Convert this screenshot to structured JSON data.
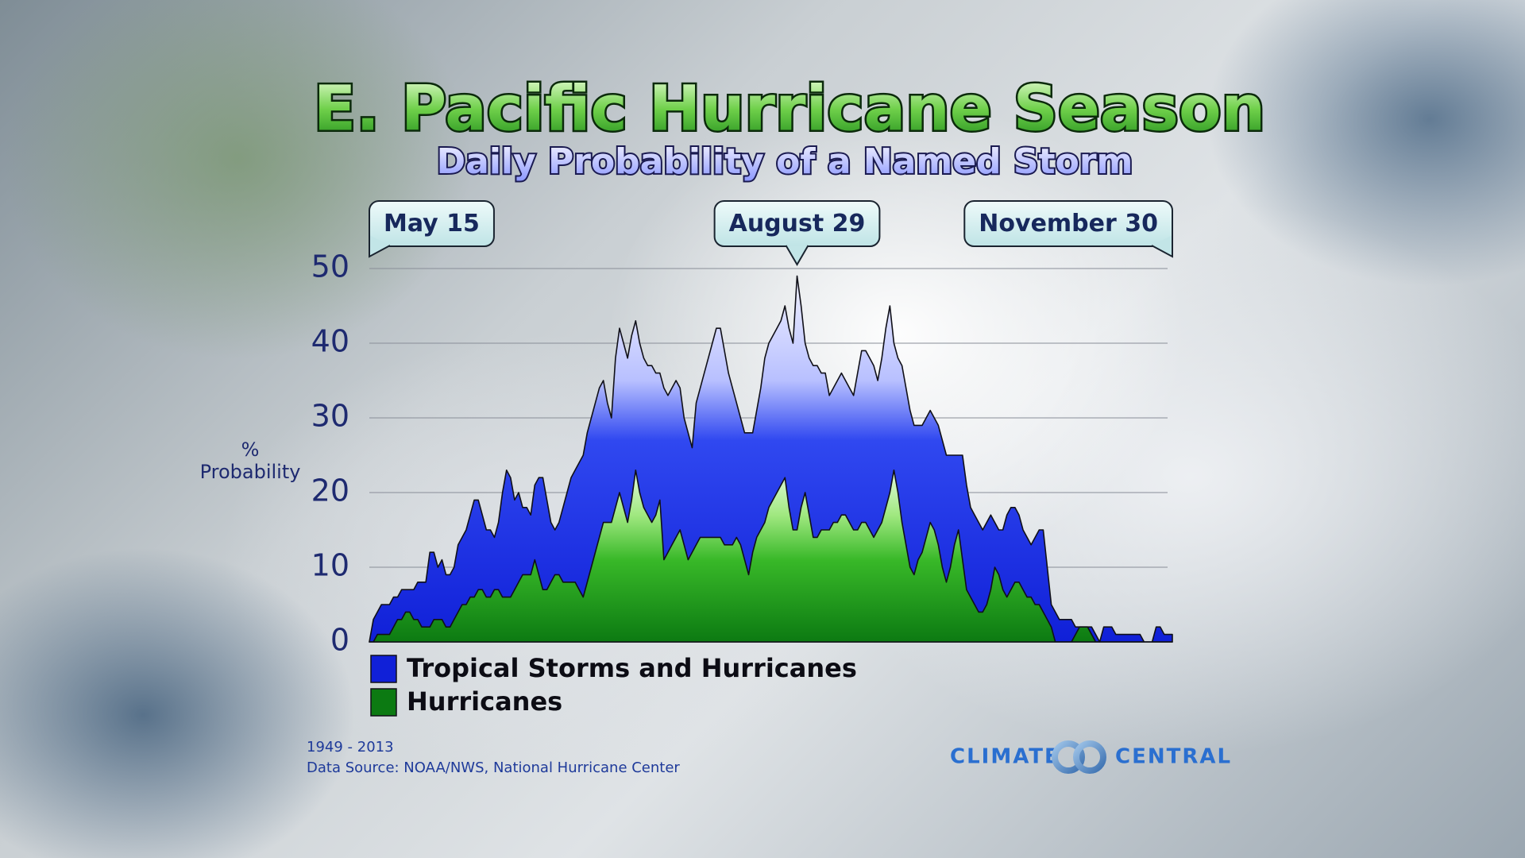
{
  "chart_data": {
    "type": "area",
    "title": "E. Pacific Hurricane Season",
    "subtitle": "Daily Probability of a Named Storm",
    "y_label": "% Probability",
    "categories": [
      "May 15",
      null,
      null,
      null,
      null,
      null,
      null,
      null,
      null,
      null,
      null,
      null,
      null,
      null,
      null,
      null,
      null,
      null,
      null,
      null,
      null,
      null,
      null,
      null,
      null,
      null,
      null,
      null,
      null,
      null,
      null,
      null,
      null,
      null,
      null,
      null,
      null,
      null,
      null,
      null,
      null,
      null,
      null,
      null,
      null,
      null,
      null,
      null,
      null,
      null,
      null,
      null,
      null,
      null,
      null,
      null,
      null,
      null,
      null,
      null,
      null,
      null,
      null,
      null,
      null,
      null,
      null,
      null,
      null,
      null,
      null,
      null,
      null,
      null,
      null,
      null,
      null,
      null,
      null,
      null,
      null,
      null,
      null,
      null,
      null,
      null,
      null,
      null,
      null,
      null,
      null,
      null,
      null,
      null,
      null,
      null,
      null,
      null,
      null,
      null,
      null,
      null,
      null,
      null,
      null,
      null,
      "August 29",
      null,
      null,
      null,
      null,
      null,
      null,
      null,
      null,
      null,
      null,
      null,
      null,
      null,
      null,
      null,
      null,
      null,
      null,
      null,
      null,
      null,
      null,
      null,
      null,
      null,
      null,
      null,
      null,
      null,
      null,
      null,
      null,
      null,
      null,
      null,
      null,
      null,
      null,
      null,
      null,
      null,
      null,
      null,
      null,
      null,
      null,
      null,
      null,
      null,
      null,
      null,
      null,
      null,
      null,
      null,
      null,
      null,
      null,
      null,
      null,
      null,
      null,
      null,
      null,
      null,
      null,
      null,
      null,
      null,
      null,
      null,
      null,
      null,
      null,
      null,
      null,
      null,
      null,
      null,
      null,
      null,
      null,
      null,
      null,
      null,
      null,
      null,
      null,
      null,
      null,
      null,
      null,
      "November 30"
    ],
    "series": [
      {
        "name": "Tropical Storms and Hurricanes",
        "color": "#1a2ee8",
        "values": [
          0,
          3,
          4,
          5,
          5,
          5,
          6,
          6,
          7,
          7,
          7,
          7,
          8,
          8,
          8,
          12,
          12,
          10,
          11,
          9,
          9,
          10,
          13,
          14,
          15,
          17,
          19,
          19,
          17,
          15,
          15,
          14,
          16,
          20,
          23,
          22,
          19,
          20,
          18,
          18,
          17,
          21,
          22,
          22,
          19,
          16,
          15,
          16,
          18,
          20,
          22,
          23,
          24,
          25,
          28,
          30,
          32,
          34,
          35,
          32,
          30,
          38,
          42,
          40,
          38,
          41,
          43,
          40,
          38,
          37,
          37,
          36,
          36,
          34,
          33,
          34,
          35,
          34,
          30,
          28,
          26,
          32,
          34,
          36,
          38,
          40,
          42,
          42,
          39,
          36,
          34,
          32,
          30,
          28,
          28,
          28,
          31,
          34,
          38,
          40,
          41,
          42,
          43,
          45,
          42,
          40,
          49,
          45,
          40,
          38,
          37,
          37,
          36,
          36,
          33,
          34,
          35,
          36,
          35,
          34,
          33,
          36,
          39,
          39,
          38,
          37,
          35,
          38,
          42,
          45,
          40,
          38,
          37,
          34,
          31,
          29,
          29,
          29,
          30,
          31,
          30,
          29,
          27,
          25,
          25,
          25,
          25,
          25,
          21,
          18,
          17,
          16,
          15,
          16,
          17,
          16,
          15,
          15,
          17,
          18,
          18,
          17,
          15,
          14,
          13,
          14,
          15,
          15,
          10,
          5,
          4,
          3,
          3,
          3,
          3,
          2,
          2,
          2,
          2,
          2,
          1,
          0,
          2,
          2,
          2,
          1,
          1,
          1,
          1,
          1,
          1,
          1,
          0,
          0,
          0,
          2,
          2,
          1,
          1,
          1
        ]
      },
      {
        "name": "Hurricanes",
        "color": "#22a81a",
        "values": [
          0,
          0,
          1,
          1,
          1,
          1,
          2,
          3,
          3,
          4,
          4,
          3,
          3,
          2,
          2,
          2,
          3,
          3,
          3,
          2,
          2,
          3,
          4,
          5,
          5,
          6,
          6,
          7,
          7,
          6,
          6,
          7,
          7,
          6,
          6,
          6,
          7,
          8,
          9,
          9,
          9,
          11,
          9,
          7,
          7,
          8,
          9,
          9,
          8,
          8,
          8,
          8,
          7,
          6,
          8,
          10,
          12,
          14,
          16,
          16,
          16,
          18,
          20,
          18,
          16,
          19,
          23,
          20,
          18,
          17,
          16,
          17,
          19,
          11,
          12,
          13,
          14,
          15,
          13,
          11,
          12,
          13,
          14,
          14,
          14,
          14,
          14,
          14,
          13,
          13,
          13,
          14,
          13,
          11,
          9,
          12,
          14,
          15,
          16,
          18,
          19,
          20,
          21,
          22,
          18,
          15,
          15,
          18,
          20,
          17,
          14,
          14,
          15,
          15,
          15,
          16,
          16,
          17,
          17,
          16,
          15,
          15,
          16,
          16,
          15,
          14,
          15,
          16,
          18,
          20,
          23,
          20,
          16,
          13,
          10,
          9,
          11,
          12,
          14,
          16,
          15,
          13,
          10,
          8,
          10,
          13,
          15,
          11,
          7,
          6,
          5,
          4,
          4,
          5,
          7,
          10,
          9,
          7,
          6,
          7,
          8,
          8,
          7,
          6,
          6,
          5,
          5,
          4,
          3,
          2,
          0,
          0,
          0,
          0,
          0,
          1,
          2,
          2,
          2,
          1,
          0,
          0,
          0,
          0,
          0,
          0,
          0,
          0,
          0,
          0,
          0,
          0,
          0,
          0,
          0,
          0,
          0,
          0,
          0,
          0
        ]
      }
    ],
    "ylim": [
      0,
      50
    ],
    "yticks": [
      0,
      10,
      20,
      30,
      40,
      50
    ],
    "grid": true,
    "legend": "bottom-left",
    "footnote": "1949 - 2013",
    "source": "Data Source: NOAA/NWS, National Hurricane Center",
    "logo": {
      "left": "CLIMATE",
      "right": "CENTRAL"
    }
  }
}
